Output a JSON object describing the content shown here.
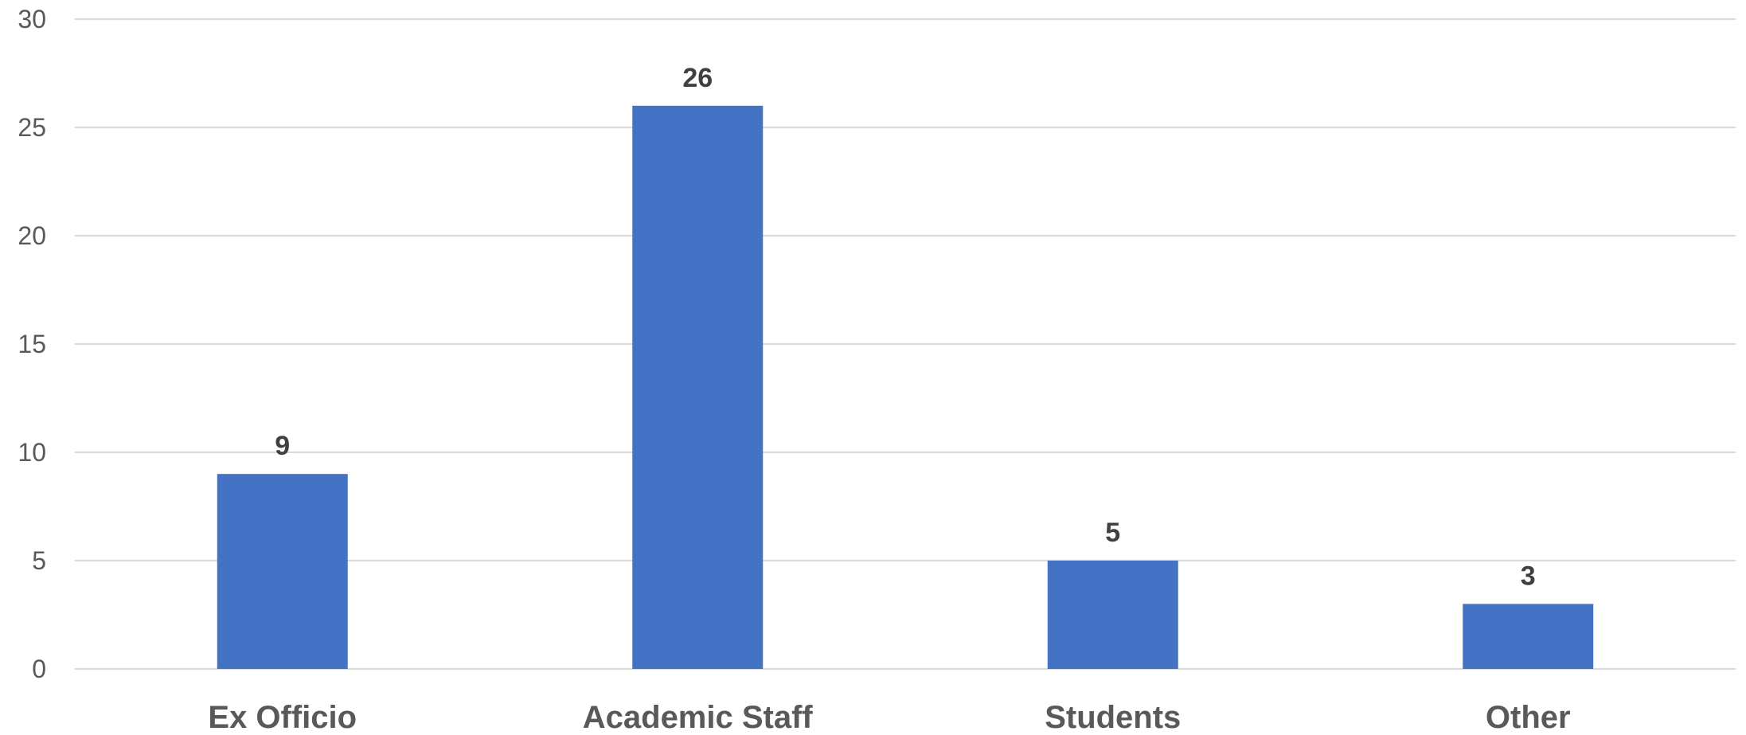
{
  "chart_data": {
    "type": "bar",
    "title": "",
    "xlabel": "",
    "ylabel": "",
    "categories": [
      "Ex Officio",
      "Academic Staff",
      "Students",
      "Other"
    ],
    "values": [
      9,
      26,
      5,
      3
    ],
    "data_labels": [
      "9",
      "26",
      "5",
      "3"
    ],
    "ylim": [
      0,
      30
    ],
    "yticks": [
      0,
      5,
      10,
      15,
      20,
      25,
      30
    ],
    "ytick_labels": [
      "0",
      "5",
      "10",
      "15",
      "20",
      "25",
      "30"
    ],
    "grid": true,
    "legend": "none",
    "colors": {
      "bar": "#4472C4",
      "grid": "#D9D9D9",
      "axis_text": "#595959",
      "data_label_text": "#404040"
    }
  }
}
